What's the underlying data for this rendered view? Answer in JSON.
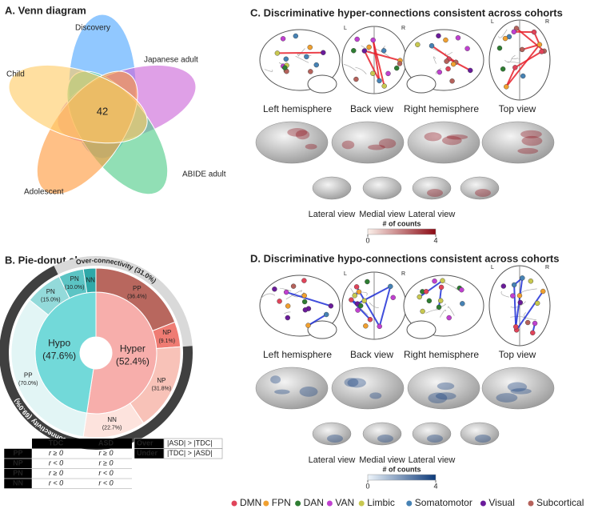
{
  "chart_data": [
    {
      "type": "venn",
      "title": "A. Venn diagram",
      "sets": [
        {
          "name": "Discovery",
          "color": "#4da6ff"
        },
        {
          "name": "Japanese adult",
          "color": "#cc66d9"
        },
        {
          "name": "ABIDE adult",
          "color": "#4dcc88"
        },
        {
          "name": "Adolescent",
          "color": "#ff9a3c"
        },
        {
          "name": "Child",
          "color": "#ffcc66"
        }
      ],
      "intersection": 42
    },
    {
      "type": "pie-donut",
      "title": "B. Pie-donut chart",
      "inner": {
        "categories": [
          "Hyper",
          "Hypo"
        ],
        "values": [
          52.4,
          47.6
        ],
        "value_labels": [
          "(52.4%)",
          "(47.6%)"
        ],
        "colors": [
          "#f7aeab",
          "#72d9d9"
        ]
      },
      "middle": {
        "categories": [
          "PP",
          "NP",
          "NP",
          "NN",
          "PP",
          "PN",
          "PN",
          "NN"
        ],
        "values": [
          36.4,
          9.1,
          31.8,
          22.7,
          70.0,
          15.0,
          10.0,
          5.0
        ],
        "value_labels": [
          "(36.4%)",
          "(9.1%)",
          "(31.8%)",
          "(22.7%)",
          "(70.0%)",
          "(15.0%)",
          "(10.0%)",
          null
        ],
        "parent": [
          0,
          0,
          0,
          0,
          1,
          1,
          1,
          1
        ],
        "colors": [
          "#b8675e",
          "#ef7c73",
          "#f8c2b8",
          "#fde3dd",
          "#e2f5f5",
          "#93dada",
          "#5cc4c4",
          "#2ea8a8"
        ]
      },
      "outer": {
        "categories": [
          "Over-connectivity",
          "Under-connectivity"
        ],
        "values": [
          31.0,
          69.0
        ],
        "value_labels": [
          "(31.0%)",
          "(69.0%)"
        ],
        "colors": [
          "#d9d9d9",
          "#404040"
        ]
      }
    }
  ],
  "panel_c": {
    "title": "C. Discriminative hyper-connections consistent across cohorts",
    "views": [
      "Left hemisphere",
      "Back view",
      "Right hemisphere",
      "Top view"
    ],
    "hemisphere_labels": [
      "L",
      "R"
    ],
    "surface_views": [
      "Lateral view",
      "Medial view",
      "Lateral view"
    ],
    "edge_color": "#e8202a",
    "colorbar": {
      "label": "# of counts",
      "lim": [
        0,
        4
      ],
      "ticks": [
        0,
        4
      ],
      "colors": [
        "#fbf0ea",
        "#8b0a14"
      ]
    }
  },
  "panel_d": {
    "title": "D. Discriminative hypo-connections consistent across cohorts",
    "views": [
      "Left hemisphere",
      "Back view",
      "Right hemisphere",
      "Top view"
    ],
    "hemisphere_labels": [
      "L",
      "R"
    ],
    "surface_views": [
      "Lateral view",
      "Medial view",
      "Lateral view"
    ],
    "edge_color": "#1f2fd6",
    "colorbar": {
      "label": "# of counts",
      "lim": [
        0,
        4
      ],
      "ticks": [
        0,
        4
      ],
      "colors": [
        "#eef5fb",
        "#0d3a7a"
      ]
    }
  },
  "tables": {
    "sign": {
      "header": [
        "TDC",
        "ASD"
      ],
      "rows": [
        [
          "PP",
          "r ≥ 0",
          "r ≥ 0"
        ],
        [
          "NP",
          "r < 0",
          "r ≥ 0"
        ],
        [
          "PN",
          "r ≥ 0",
          "r < 0"
        ],
        [
          "NN",
          "r < 0",
          "r < 0"
        ]
      ]
    },
    "direction": {
      "rows": [
        [
          "Over",
          "|ASD| > |TDC|"
        ],
        [
          "Under",
          "|TDC| > |ASD|"
        ]
      ]
    }
  },
  "legend": {
    "networks": [
      {
        "name": "DMN",
        "color": "#e0445a"
      },
      {
        "name": "FPN",
        "color": "#f0a030"
      },
      {
        "name": "DAN",
        "color": "#2e7d32"
      },
      {
        "name": "VAN",
        "color": "#c040d0"
      },
      {
        "name": "Limbic",
        "color": "#c8c850"
      },
      {
        "name": "Somatomotor",
        "color": "#4682b4"
      },
      {
        "name": "Visual",
        "color": "#6a1b9a"
      },
      {
        "name": "Subcortical",
        "color": "#b5625b"
      }
    ]
  }
}
